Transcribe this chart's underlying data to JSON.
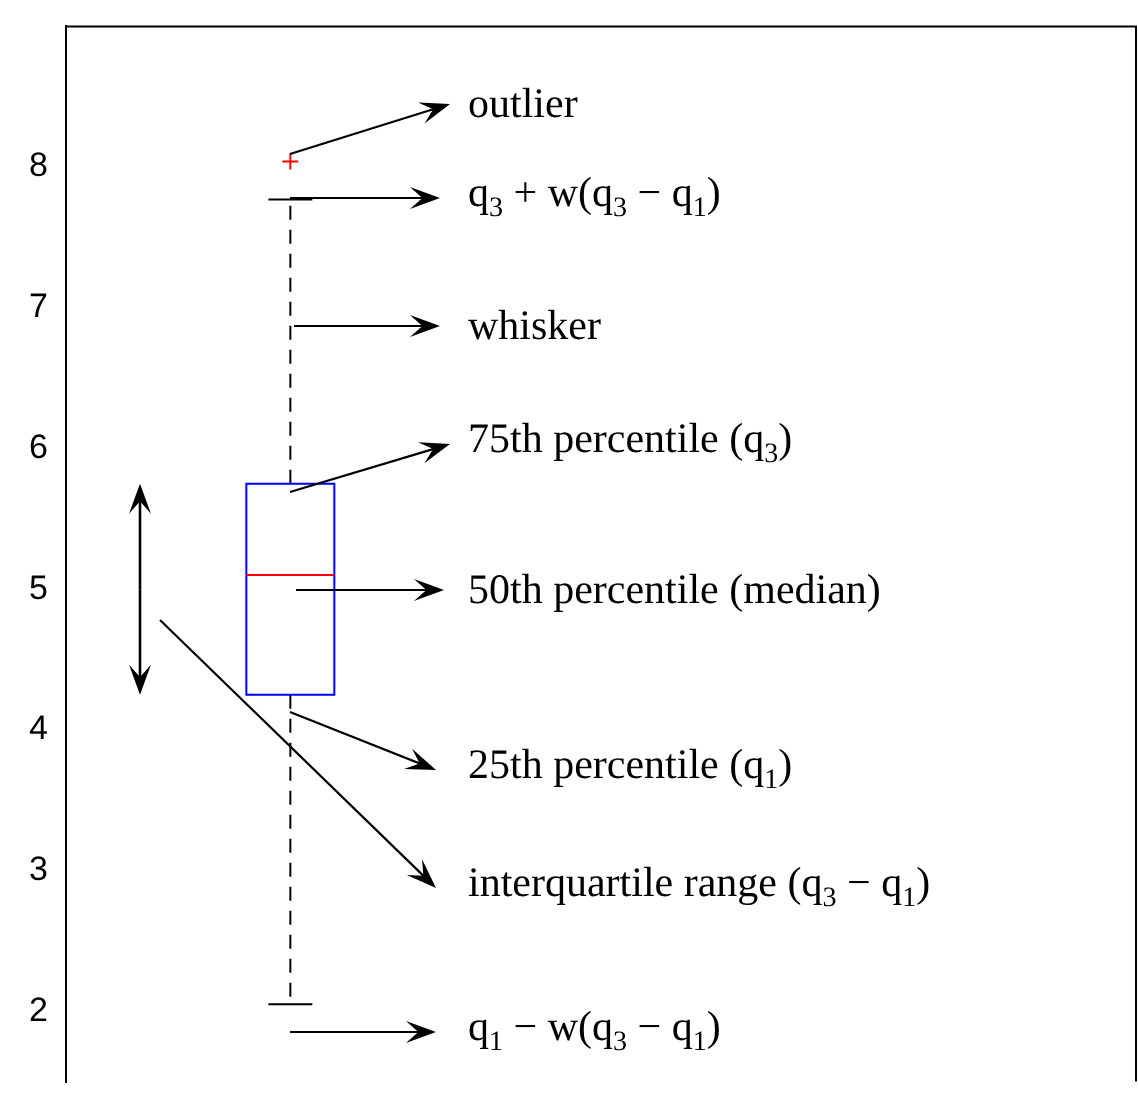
{
  "chart_data": {
    "type": "box",
    "categories": [
      null
    ],
    "boxes": [
      {
        "low": 2.05,
        "q1": 4.25,
        "median": 5.1,
        "q3": 5.75,
        "high": 7.77,
        "outliers": [
          8.04
        ]
      }
    ],
    "ylim": [
      1.5,
      9
    ],
    "yticks": [
      2,
      3,
      4,
      5,
      6,
      7,
      8
    ],
    "grid": false,
    "tick_labels": "y",
    "annotations": [
      "outlier",
      "q$_{3}$ + w(q$_{3}$ − q$_{1}$)",
      "whisker",
      "75th percentile (q$_{3}$)",
      "50th percentile (median)",
      "25th percentile (q$_{1}$)",
      "interquartile range (q$_{3}$ − q$_{1}$)",
      "q$_{1}$ − w(q$_{3}$ − q$_{1}$)"
    ]
  }
}
